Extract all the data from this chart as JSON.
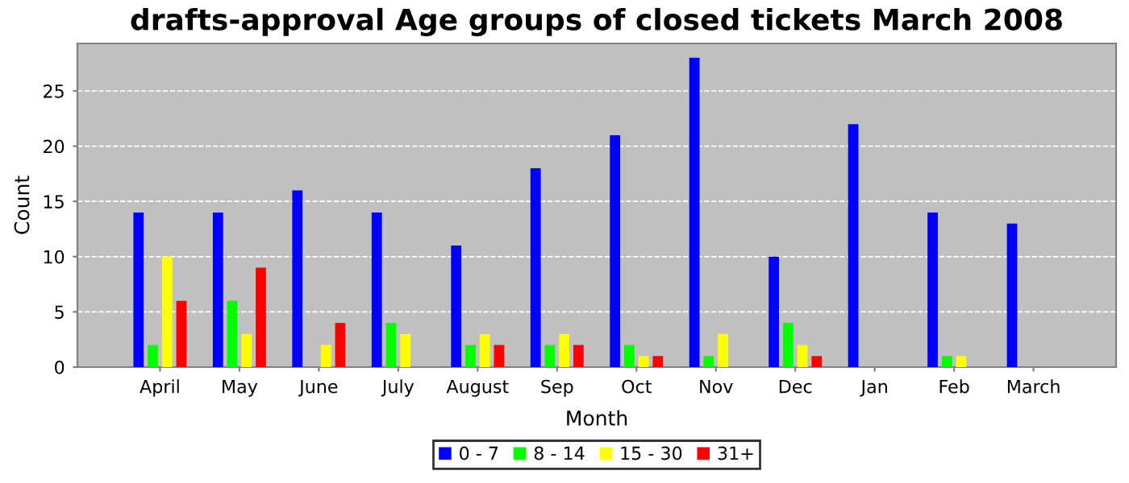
{
  "chart_data": {
    "type": "bar",
    "title": "drafts-approval Age groups of closed tickets March 2008",
    "xlabel": "Month",
    "ylabel": "Count",
    "categories": [
      "April",
      "May",
      "June",
      "July",
      "August",
      "Sep",
      "Oct",
      "Nov",
      "Dec",
      "Jan",
      "Feb",
      "March"
    ],
    "series": [
      {
        "name": "0 - 7",
        "color": "#0000ff",
        "values": [
          14,
          14,
          16,
          14,
          11,
          18,
          21,
          28,
          10,
          22,
          14,
          13
        ]
      },
      {
        "name": "8 - 14",
        "color": "#00ff00",
        "values": [
          2,
          6,
          0,
          4,
          2,
          2,
          2,
          1,
          4,
          0,
          1,
          0
        ]
      },
      {
        "name": "15 - 30",
        "color": "#ffff00",
        "values": [
          10,
          3,
          2,
          3,
          3,
          3,
          1,
          3,
          2,
          0,
          1,
          0
        ]
      },
      {
        "name": "31+",
        "color": "#ff0000",
        "values": [
          6,
          9,
          4,
          0,
          2,
          2,
          1,
          0,
          1,
          0,
          0,
          0
        ]
      }
    ],
    "ylim": [
      0,
      29.3
    ],
    "yticks": [
      0,
      5,
      10,
      15,
      20,
      25
    ],
    "grid": "y",
    "legend": "bottom"
  }
}
